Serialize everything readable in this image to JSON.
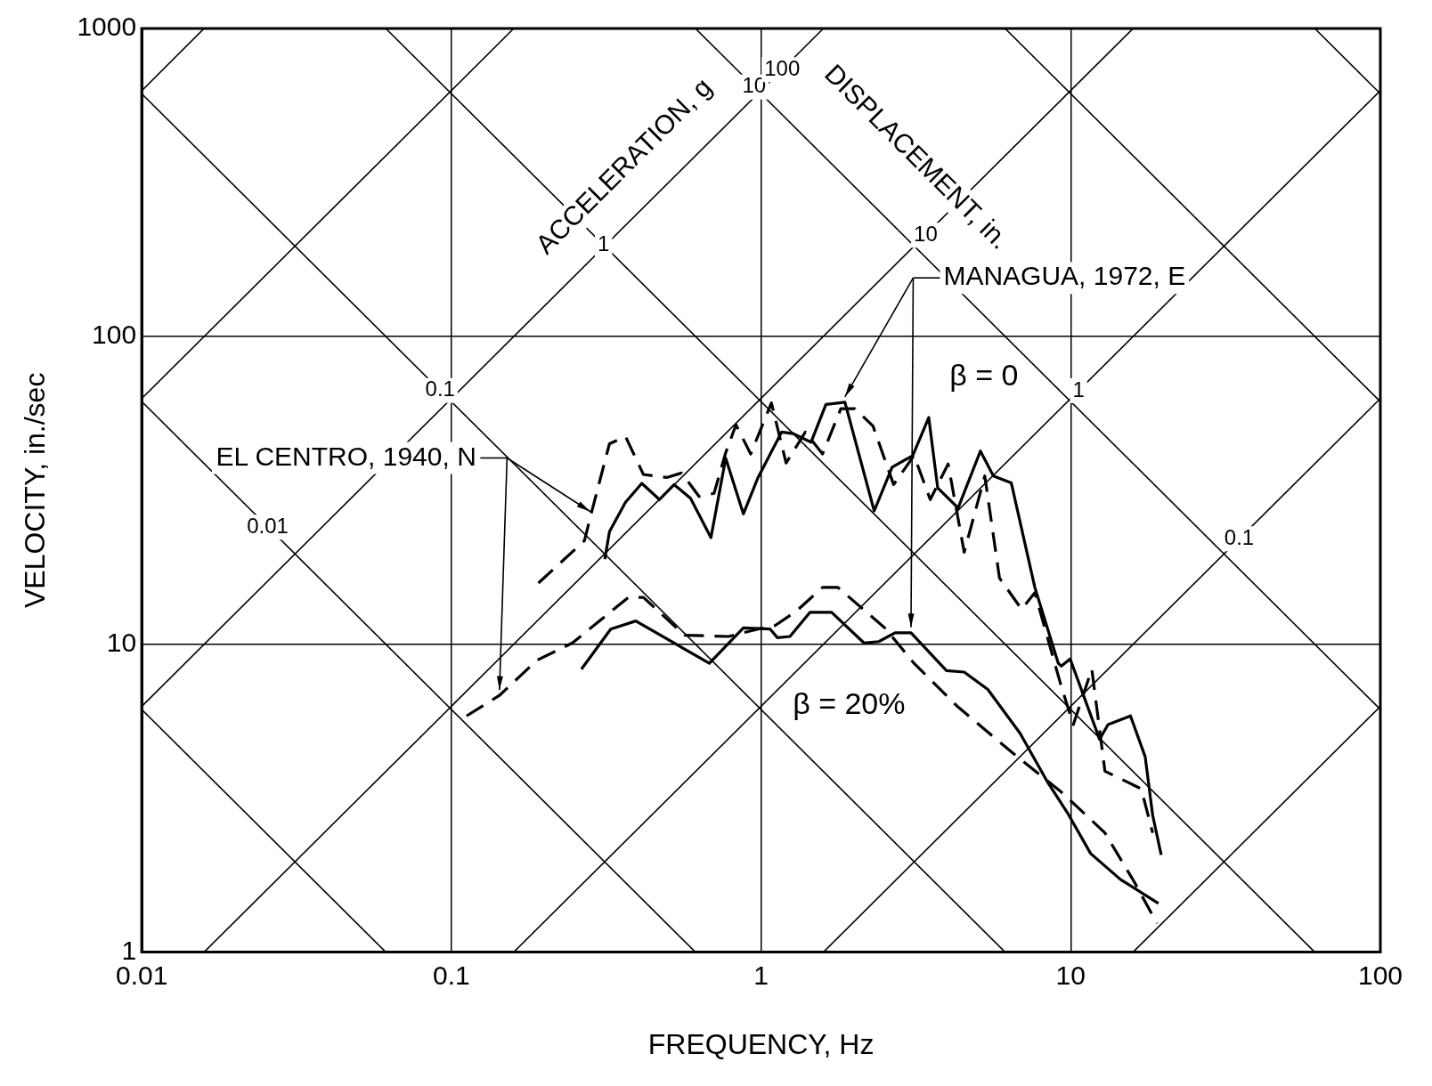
{
  "chart_data": {
    "type": "line",
    "xlabel": "FREQUENCY, Hz",
    "ylabel": "VELOCITY, in./sec",
    "log": "xy",
    "grid": true,
    "legend": false,
    "marker": "none",
    "xlim": [
      0.01,
      100
    ],
    "xticks": [
      0.01,
      0.1,
      1,
      10,
      100
    ],
    "ylim": [
      1,
      1000
    ],
    "yticks": [
      1,
      10,
      100,
      1000
    ],
    "series": [
      {
        "color": "#000000",
        "line_style": "solid",
        "x": [
          0.313,
          0.324,
          0.365,
          0.412,
          0.47,
          0.524,
          0.592,
          0.689,
          0.769,
          0.877,
          0.978,
          1.166,
          1.27,
          1.45,
          1.62,
          1.866,
          2.32,
          2.65,
          3.09,
          3.48,
          3.72,
          4.33,
          5.11,
          5.63,
          6.43,
          7.66,
          9.12,
          9.33,
          9.96,
          12.4,
          13.2,
          15.6,
          17.4,
          18.4,
          19.6
        ],
        "values": [
          18.9,
          23.2,
          28.9,
          33.3,
          29.5,
          33,
          29.8,
          22.2,
          40.2,
          26.5,
          34.8,
          48.9,
          48.3,
          45.3,
          60.1,
          61.1,
          27.1,
          37.6,
          41,
          54.5,
          32.2,
          27.7,
          42.4,
          35.2,
          33.4,
          15.3,
          8.67,
          8.49,
          8.96,
          4.91,
          5.48,
          5.85,
          4.31,
          2.78,
          2.07
        ]
      },
      {
        "color": "#000000",
        "line_style": "dashed",
        "x": [
          0.191,
          0.269,
          0.281,
          0.324,
          0.365,
          0.417,
          0.496,
          0.554,
          0.631,
          0.705,
          0.769,
          0.83,
          0.926,
          1.08,
          1.205,
          1.39,
          1.58,
          1.81,
          2.01,
          2.3,
          2.68,
          3.12,
          3.52,
          4.02,
          4.53,
          5.28,
          5.89,
          6.94,
          7.66,
          9.33,
          10.2,
          11.7,
          12.9,
          16.9,
          18.4
        ],
        "values": [
          15.8,
          21.7,
          25.9,
          44.8,
          47.3,
          35.6,
          34.8,
          36,
          30.2,
          30.9,
          41.9,
          51.6,
          41.5,
          60.8,
          38.8,
          48.9,
          41.5,
          58.2,
          58.2,
          51.1,
          33,
          41,
          29.5,
          38.5,
          19.9,
          35.2,
          16.4,
          13,
          14.7,
          7.28,
          5.48,
          8.3,
          3.87,
          3.39,
          2.44
        ]
      },
      {
        "color": "#000000",
        "line_style": "solid",
        "x": [
          0.263,
          0.327,
          0.394,
          0.681,
          0.877,
          1.07,
          1.13,
          1.24,
          1.44,
          1.69,
          2.15,
          2.4,
          2.71,
          3.05,
          3.97,
          4.53,
          5.4,
          6.87,
          8.36,
          9.75,
          11.6,
          14.5,
          19.2
        ],
        "values": [
          8.3,
          11.2,
          11.9,
          8.67,
          11.3,
          11.2,
          10.5,
          10.6,
          12.7,
          12.7,
          10.1,
          10.2,
          10.9,
          10.9,
          8.21,
          8.12,
          7.13,
          5.13,
          3.61,
          2.84,
          2.09,
          1.72,
          1.44
        ]
      },
      {
        "color": "#000000",
        "line_style": "dashed",
        "x": [
          0.112,
          0.143,
          0.189,
          0.246,
          0.313,
          0.373,
          0.417,
          0.566,
          0.786,
          0.978,
          1.11,
          1.3,
          1.58,
          1.77,
          2.51,
          3.12,
          4.33,
          6.72,
          9.33,
          12.9,
          16.1,
          19
        ],
        "values": [
          5.85,
          6.82,
          8.87,
          10.1,
          12.3,
          14.2,
          14.2,
          10.7,
          10.6,
          11.2,
          11.5,
          12.8,
          15.3,
          15.3,
          11.3,
          8.67,
          6.25,
          4.31,
          3.31,
          2.44,
          1.68,
          1.24
        ]
      },
      {
        "color": "#000000",
        "line_style": "solid",
        "x": [
          0.01,
          0.0614
        ],
        "values": [
          6.14,
          1
        ]
      },
      {
        "color": "#000000",
        "line_style": "solid",
        "x": [
          0.01,
          0.614
        ],
        "values": [
          61.4,
          1
        ]
      },
      {
        "color": "#000000",
        "line_style": "solid",
        "x": [
          0.01,
          6.14
        ],
        "values": [
          614,
          1
        ]
      },
      {
        "color": "#000000",
        "line_style": "solid",
        "x": [
          0.0614,
          61.4
        ],
        "values": [
          1000,
          1
        ]
      },
      {
        "color": "#000000",
        "line_style": "solid",
        "x": [
          0.614,
          100
        ],
        "values": [
          1000,
          6.14
        ]
      },
      {
        "color": "#000000",
        "line_style": "solid",
        "x": [
          6.14,
          100
        ],
        "values": [
          1000,
          61.4
        ]
      },
      {
        "color": "#000000",
        "line_style": "solid",
        "x": [
          61.4,
          100
        ],
        "values": [
          1000,
          614
        ]
      },
      {
        "color": "#000000",
        "line_style": "solid",
        "x": [
          15.9,
          100
        ],
        "values": [
          1,
          6.28
        ]
      },
      {
        "color": "#000000",
        "line_style": "solid",
        "x": [
          1.59,
          100
        ],
        "values": [
          1,
          62.8
        ]
      },
      {
        "color": "#000000",
        "line_style": "solid",
        "x": [
          0.159,
          100
        ],
        "values": [
          1,
          628
        ]
      },
      {
        "color": "#000000",
        "line_style": "solid",
        "x": [
          0.0159,
          15.9
        ],
        "values": [
          1,
          1000
        ]
      },
      {
        "color": "#000000",
        "line_style": "solid",
        "x": [
          0.01,
          1.59
        ],
        "values": [
          6.28,
          1000
        ]
      },
      {
        "color": "#000000",
        "line_style": "solid",
        "x": [
          0.01,
          0.159
        ],
        "values": [
          62.8,
          1000
        ]
      },
      {
        "color": "#000000",
        "line_style": "solid",
        "x": [
          0.01,
          0.0159
        ],
        "values": [
          628,
          1000
        ]
      }
    ],
    "annotations": [
      {
        "text": "EL CENTRO, 1940, N",
        "x": 0.281,
        "y": 25.9
      },
      {
        "text": "MANAGUA, 1972, E",
        "x": 1.866,
        "y": 61.1
      },
      "ACCELERATION, g",
      "DISPLACEMENT, in.",
      "β = 0",
      "β = 20%",
      {
        "text": "0.01",
        "x": 0.0255,
        "y": 24
      },
      {
        "text": "0.1",
        "x": 0.092,
        "y": 66.7
      },
      {
        "text": "1",
        "x": 0.31,
        "y": 198
      },
      {
        "text": "10",
        "x": 0.95,
        "y": 646
      },
      {
        "text": "100",
        "x": 1.17,
        "y": 735
      },
      {
        "text": "10",
        "x": 3.4,
        "y": 213
      },
      {
        "text": "1",
        "x": 10.6,
        "y": 66.6
      },
      {
        "text": "0.1",
        "x": 35,
        "y": 22
      }
    ]
  }
}
